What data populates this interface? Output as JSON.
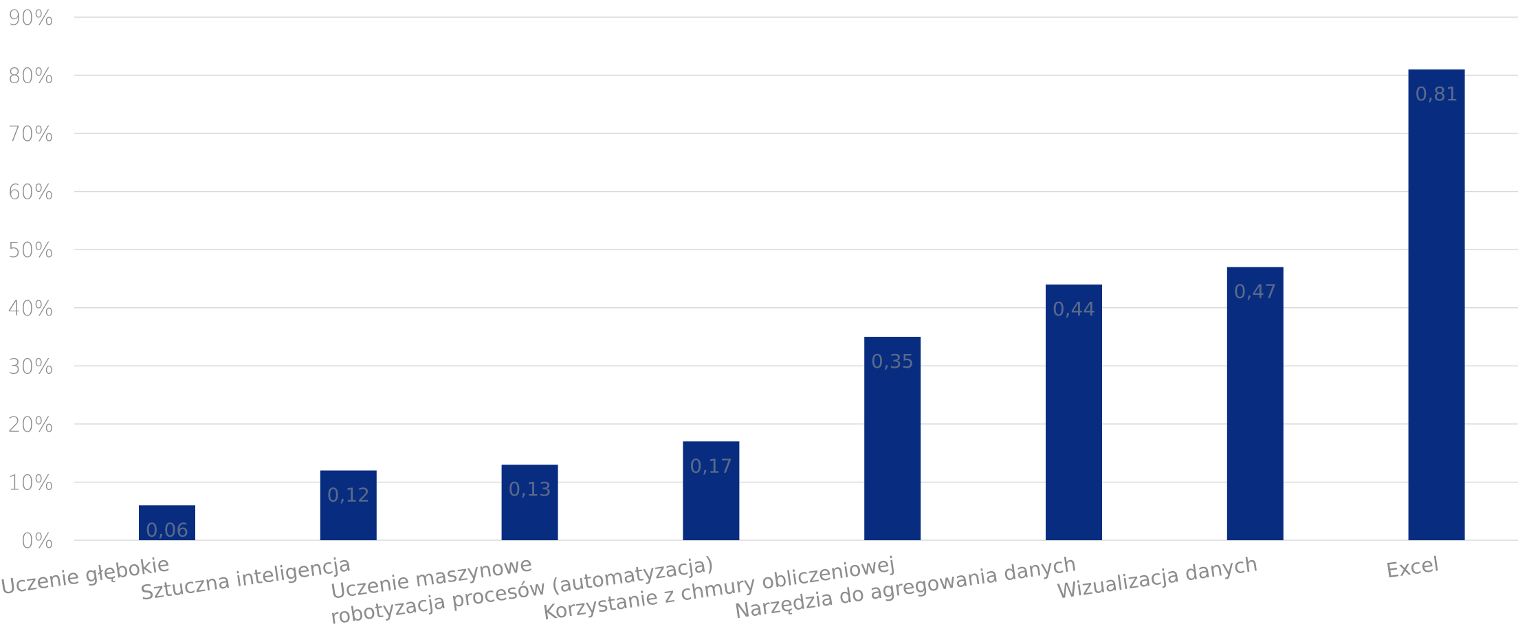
{
  "colors": {
    "bar": "#082d80",
    "grid": "#d9d9d9",
    "text": "#8c8c8c",
    "data_label": "#5a6a8a"
  },
  "chart_data": {
    "type": "bar",
    "categories": [
      "Uczenie głębokie",
      "Sztuczna inteligencja",
      "Uczenie maszynowe",
      "robotyzacja procesów (automatyzacja)",
      "Korzystanie z chmury obliczeniowej",
      "Narzędzia do agregowania danych",
      "Wizualizacja danych",
      "Excel"
    ],
    "values": [
      0.06,
      0.12,
      0.13,
      0.17,
      0.35,
      0.44,
      0.47,
      0.81
    ],
    "data_labels": [
      "0,06",
      "0,12",
      "0,13",
      "0,17",
      "0,35",
      "0,44",
      "0,47",
      "0,81"
    ],
    "y_ticks": [
      "0%",
      "10%",
      "20%",
      "30%",
      "40%",
      "50%",
      "60%",
      "70%",
      "80%",
      "90%"
    ],
    "ylim": [
      0,
      0.9
    ],
    "grid": true,
    "legend": "none",
    "title": "",
    "xlabel": "",
    "ylabel": ""
  }
}
